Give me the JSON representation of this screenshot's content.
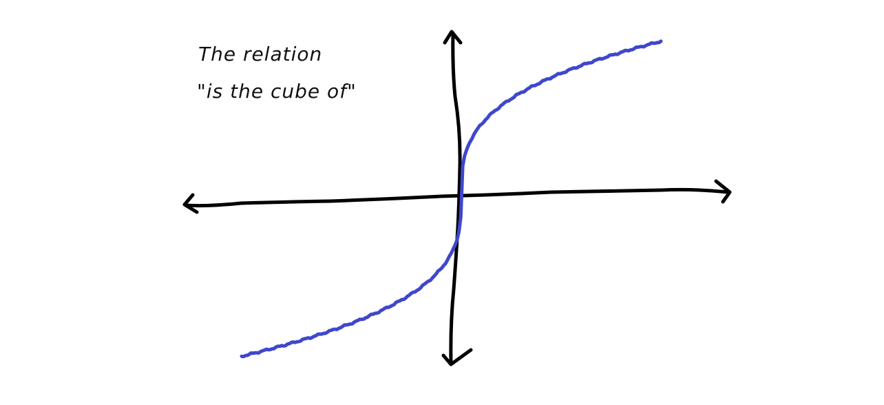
{
  "note": {
    "line1": "The relation",
    "line2": "\"is the cube of\""
  },
  "colors": {
    "background": "#ffffff",
    "axes": "#000000",
    "curve": "#3f47cc",
    "text": "#111111"
  },
  "chart_data": {
    "type": "line",
    "title": "",
    "xlabel": "",
    "ylabel": "",
    "x_axis": {
      "arrows": [
        "left",
        "right"
      ]
    },
    "y_axis": {
      "arrows": [
        "up",
        "down"
      ]
    },
    "grid": false,
    "series": [
      {
        "function": "cube root",
        "sketch": true
      }
    ]
  }
}
